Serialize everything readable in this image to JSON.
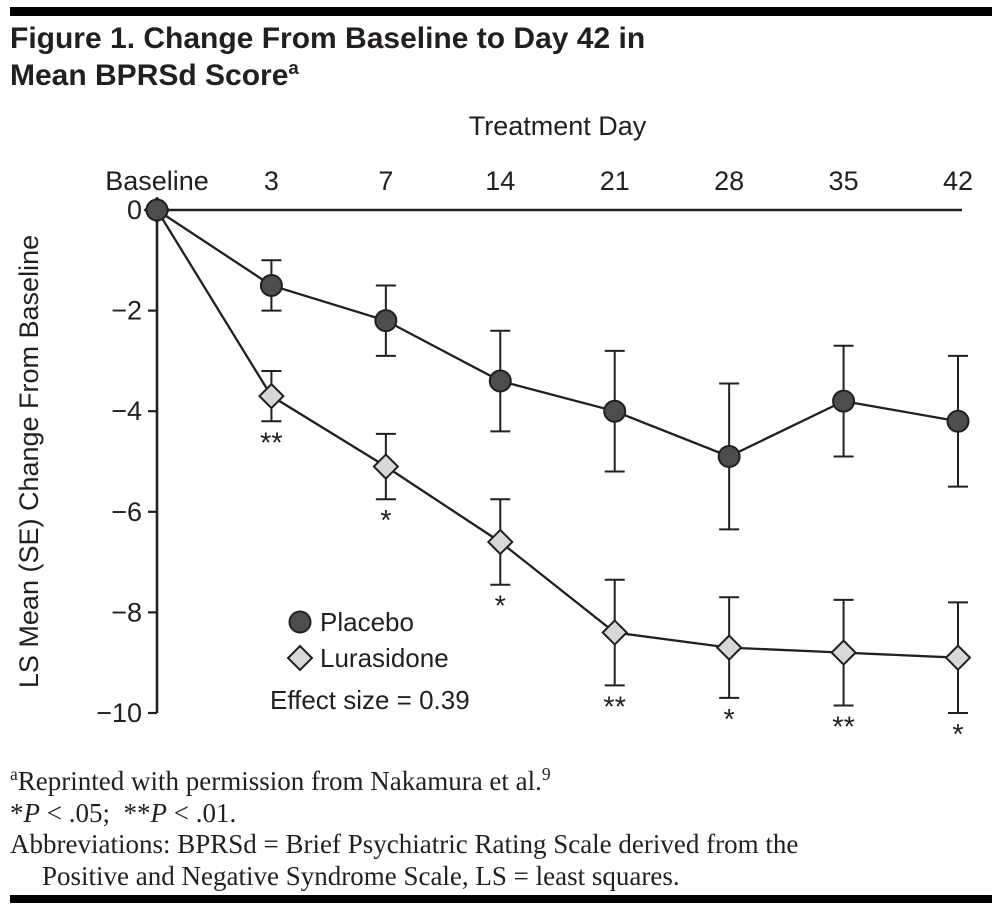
{
  "figure": {
    "title_line1": "Figure 1. Change From Baseline to Day 42 in",
    "title_line2": "Mean BPRSd Score",
    "title_superscript": "a"
  },
  "chart_data": {
    "type": "line",
    "title": "Figure 1. Change From Baseline to Day 42 in Mean BPRSd Score",
    "xlabel": "Treatment Day",
    "ylabel": "LS Mean (SE) Change From Baseline",
    "categories": [
      "Baseline",
      "3",
      "7",
      "14",
      "21",
      "28",
      "35",
      "42"
    ],
    "ylim": [
      -10,
      0
    ],
    "yticks": [
      {
        "value": 0,
        "label": "0"
      },
      {
        "value": -2,
        "label": "−2"
      },
      {
        "value": -4,
        "label": "−4"
      },
      {
        "value": -6,
        "label": "−6"
      },
      {
        "value": -8,
        "label": "−8"
      },
      {
        "value": -10,
        "label": "−10"
      }
    ],
    "grid": false,
    "error_bars": "SE",
    "legend_position": "inside-lower-left",
    "ink_color": "#231f20",
    "series": [
      {
        "name": "Placebo",
        "marker": "circle",
        "fill": "#4d4d4d",
        "values": [
          0,
          -1.5,
          -2.2,
          -3.4,
          -4.0,
          -4.9,
          -3.8,
          -4.2
        ],
        "se": [
          0,
          0.5,
          0.7,
          1.0,
          1.2,
          1.45,
          1.1,
          1.3
        ],
        "significance": [
          "",
          "",
          "",
          "",
          "",
          "",
          "",
          ""
        ]
      },
      {
        "name": "Lurasidone",
        "marker": "diamond",
        "fill": "#d8d8d8",
        "values": [
          0,
          -3.7,
          -5.1,
          -6.6,
          -8.4,
          -8.7,
          -8.8,
          -8.9
        ],
        "se": [
          0,
          0.5,
          0.65,
          0.85,
          1.05,
          1.0,
          1.05,
          1.1
        ],
        "significance": [
          "",
          "**",
          "*",
          "*",
          "**",
          "*",
          "**",
          "*"
        ]
      }
    ],
    "annotations": {
      "effect_size": "Effect size = 0.39",
      "sig_key": "*P < .05; **P < .01."
    }
  },
  "footnotes": {
    "reprint_sup": "a",
    "reprint_text": "Reprinted with permission from Nakamura et al.",
    "reprint_ref": "9",
    "p_star1": "*",
    "p_P1": "P",
    "p_mid1": " < .05;  **",
    "p_P2": "P",
    "p_end": " < .01.",
    "abbrev_line1": "Abbreviations: BPRSd = Brief Psychiatric Rating Scale derived from the",
    "abbrev_line2": "Positive and Negative Syndrome Scale, LS = least squares."
  }
}
